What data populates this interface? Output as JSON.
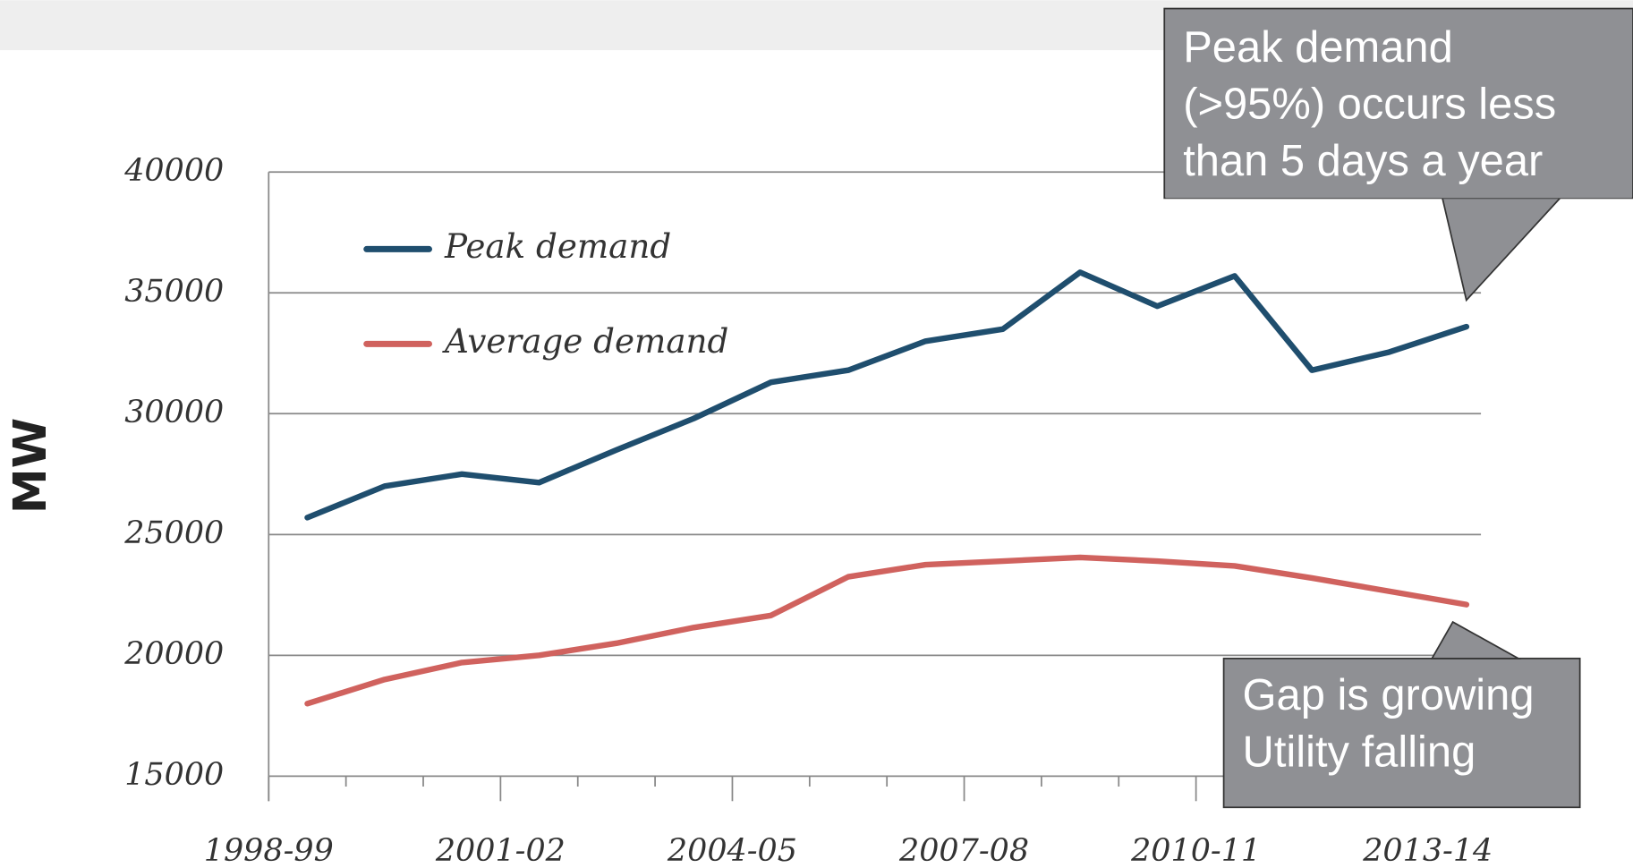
{
  "chart_data": {
    "type": "line",
    "y_label": "MW",
    "categories": [
      "1998-99",
      null,
      null,
      "2001-02",
      null,
      null,
      "2004-05",
      null,
      null,
      "2007-08",
      null,
      null,
      "2010-11",
      null,
      null,
      "2013-14"
    ],
    "series": [
      {
        "name": "Peak demand",
        "color": "#1f4e6e",
        "values": [
          25700,
          27000,
          27500,
          27150,
          28500,
          29800,
          31300,
          31800,
          33000,
          33500,
          35850,
          34450,
          35700,
          31800,
          32550,
          33600
        ]
      },
      {
        "name": "Average demand",
        "color": "#d0625e",
        "values": [
          18000,
          19000,
          19700,
          20000,
          20500,
          21150,
          21650,
          23250,
          23750,
          23900,
          24050,
          23900,
          23700,
          23200,
          22650,
          22100
        ]
      }
    ],
    "ylim": [
      15000,
      40000
    ],
    "yticks": [
      15000,
      20000,
      25000,
      30000,
      35000,
      40000
    ],
    "grid": true,
    "legend": "upper left",
    "annotations": [
      {
        "lines": [
          "Peak demand",
          "(>95%) occurs less",
          "than 5 days a year"
        ]
      },
      {
        "lines": [
          "Gap is growing",
          "Utility falling"
        ]
      }
    ]
  }
}
